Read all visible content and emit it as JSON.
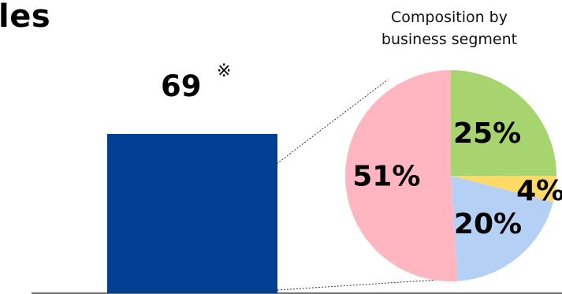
{
  "heading_fragment": "les",
  "chart_data": [
    {
      "type": "bar",
      "categories": [
        ""
      ],
      "values": [
        69
      ],
      "data_labels": [
        "69"
      ],
      "note_mark": "※",
      "color": "#003f94"
    },
    {
      "type": "pie",
      "title": "Composition by\nbusiness segment",
      "title_lines": [
        "Composition by",
        "business segment"
      ],
      "slices": [
        {
          "label": "25%",
          "value": 25,
          "color": "#a8d46f"
        },
        {
          "label": "4%",
          "value": 4,
          "color": "#ffd966"
        },
        {
          "label": "20%",
          "value": 20,
          "color": "#b4d1f5"
        },
        {
          "label": "51%",
          "value": 51,
          "color": "#ffb6c1"
        }
      ],
      "start": "12 o'clock",
      "direction": "clockwise"
    }
  ]
}
